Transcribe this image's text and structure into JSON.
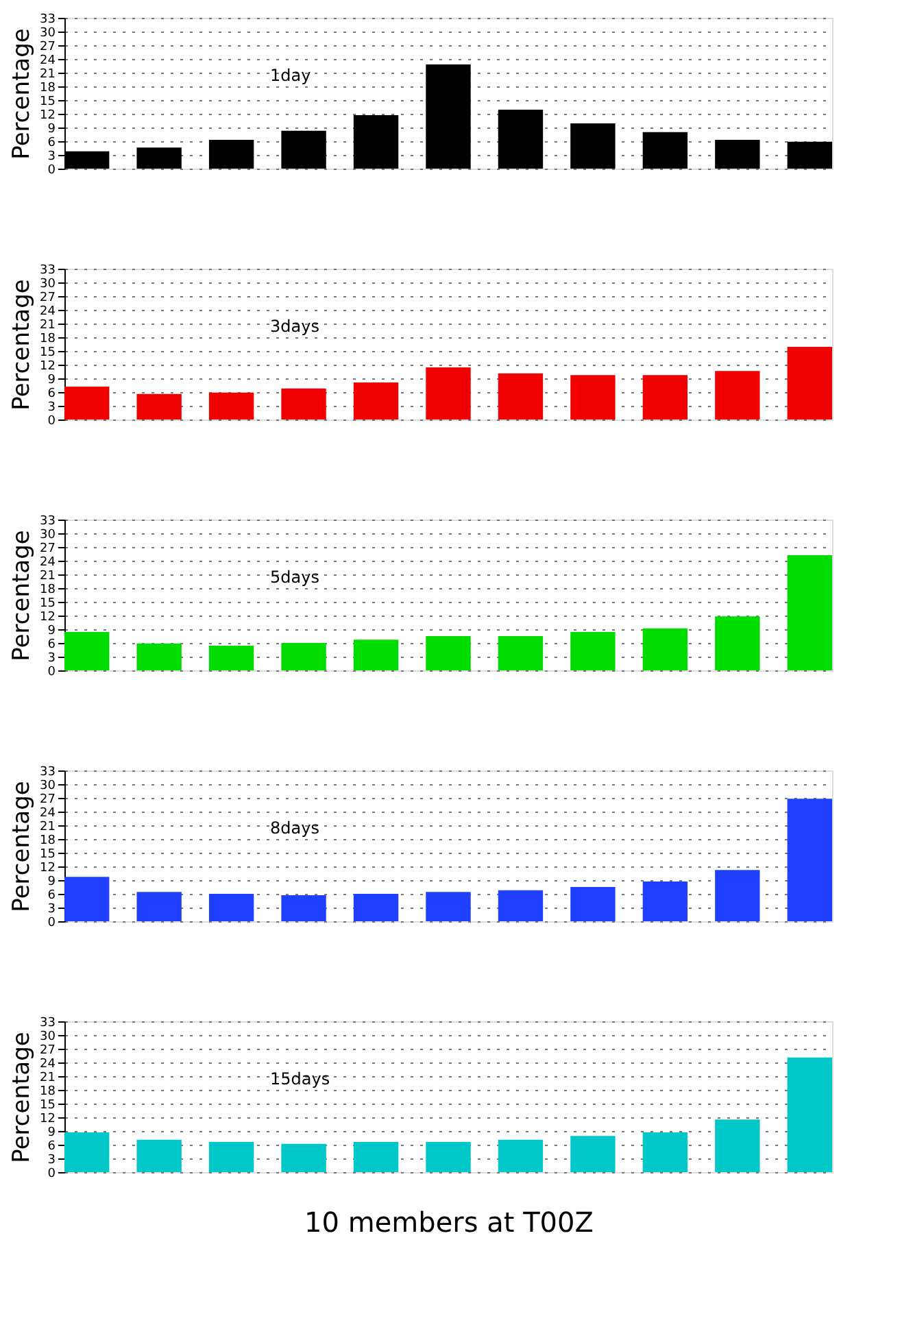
{
  "chart_data": [
    {
      "type": "bar",
      "title": "1day",
      "ylabel": "Percentage",
      "categories": [
        null,
        null,
        null,
        null,
        null,
        null,
        null,
        null,
        null,
        null,
        null
      ],
      "values": [
        3.8,
        4.6,
        6.3,
        8.3,
        11.7,
        22.8,
        12.9,
        9.9,
        8.0,
        6.3,
        5.9
      ],
      "color": "#000000",
      "ylim": [
        0,
        33
      ],
      "yticks": [
        0,
        3,
        6,
        9,
        12,
        15,
        18,
        21,
        24,
        27,
        30,
        33
      ],
      "grid": "y"
    },
    {
      "type": "bar",
      "title": "3days",
      "ylabel": "Percentage",
      "categories": [
        null,
        null,
        null,
        null,
        null,
        null,
        null,
        null,
        null,
        null,
        null
      ],
      "values": [
        7.2,
        5.6,
        5.9,
        6.8,
        8.1,
        11.4,
        10.1,
        9.7,
        9.7,
        10.6,
        15.9
      ],
      "color": "#f00000",
      "ylim": [
        0,
        33
      ],
      "yticks": [
        0,
        3,
        6,
        9,
        12,
        15,
        18,
        21,
        24,
        27,
        30,
        33
      ],
      "grid": "y"
    },
    {
      "type": "bar",
      "title": "5days",
      "ylabel": "Percentage",
      "categories": [
        null,
        null,
        null,
        null,
        null,
        null,
        null,
        null,
        null,
        null,
        null
      ],
      "values": [
        8.4,
        5.9,
        5.4,
        6.0,
        6.7,
        7.5,
        7.5,
        8.4,
        9.2,
        11.8,
        25.2
      ],
      "color": "#00dc00",
      "ylim": [
        0,
        33
      ],
      "yticks": [
        0,
        3,
        6,
        9,
        12,
        15,
        18,
        21,
        24,
        27,
        30,
        33
      ],
      "grid": "y"
    },
    {
      "type": "bar",
      "title": "8days",
      "ylabel": "Percentage",
      "categories": [
        null,
        null,
        null,
        null,
        null,
        null,
        null,
        null,
        null,
        null,
        null
      ],
      "values": [
        9.7,
        6.4,
        6.0,
        5.7,
        6.0,
        6.4,
        6.8,
        7.5,
        8.7,
        11.2,
        26.8
      ],
      "color": "#2040ff",
      "ylim": [
        0,
        33
      ],
      "yticks": [
        0,
        3,
        6,
        9,
        12,
        15,
        18,
        21,
        24,
        27,
        30,
        33
      ],
      "grid": "y"
    },
    {
      "type": "bar",
      "title": "15days",
      "ylabel": "Percentage",
      "xlabel": "10 members at T00Z",
      "categories": [
        null,
        null,
        null,
        null,
        null,
        null,
        null,
        null,
        null,
        null,
        null
      ],
      "values": [
        8.7,
        7.1,
        6.6,
        6.2,
        6.6,
        6.6,
        7.1,
        7.9,
        8.7,
        11.5,
        25.1
      ],
      "color": "#00c8c8",
      "ylim": [
        0,
        33
      ],
      "yticks": [
        0,
        3,
        6,
        9,
        12,
        15,
        18,
        21,
        24,
        27,
        30,
        33
      ],
      "grid": "y"
    }
  ]
}
